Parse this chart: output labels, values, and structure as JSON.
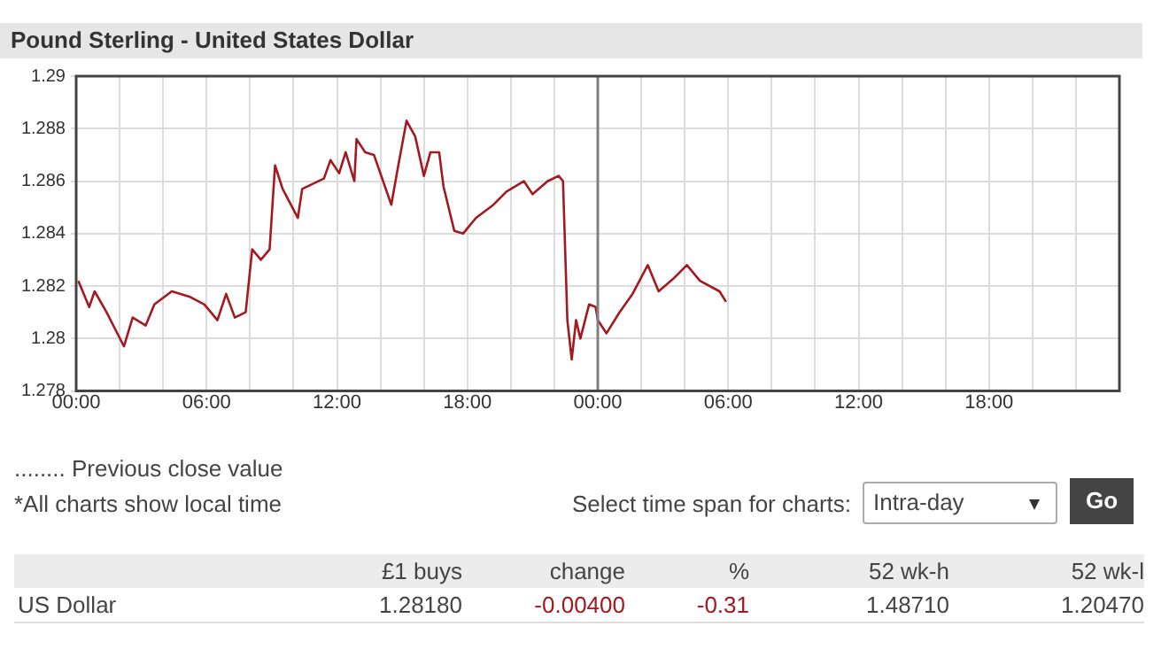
{
  "chart_data": {
    "type": "line",
    "title": "Pound Sterling - United States Dollar",
    "x": [
      "--05-08T00:06",
      "--05-08T00:36",
      "--05-08T00:51",
      "--05-08T01:24",
      "--05-08T02:12",
      "--05-08T02:36",
      "--05-08T03:12",
      "--05-08T03:36",
      "--05-08T04:24",
      "--05-08T05:12",
      "--05-08T05:54",
      "--05-08T06:30",
      "--05-08T06:54",
      "--05-08T07:18",
      "--05-08T07:48",
      "--05-08T08:06",
      "--05-08T08:30",
      "--05-08T08:54",
      "--05-08T09:09",
      "--05-08T09:30",
      "--05-08T10:12",
      "--05-08T10:24",
      "--05-08T11:24",
      "--05-08T11:42",
      "--05-08T12:06",
      "--05-08T12:24",
      "--05-08T12:48",
      "--05-08T12:54",
      "--05-08T13:18",
      "--05-08T13:42",
      "--05-08T14:30",
      "--05-08T14:48",
      "--05-08T15:12",
      "--05-08T15:36",
      "--05-08T16:00",
      "--05-08T16:18",
      "--05-08T16:42",
      "--05-08T16:54",
      "--05-08T17:24",
      "--05-08T17:48",
      "--05-08T18:24",
      "--05-08T19:12",
      "--05-08T19:48",
      "--05-08T20:36",
      "--05-08T21:00",
      "--05-08T21:42",
      "--05-08T22:12",
      "--05-08T22:24",
      "--05-08T22:36",
      "--05-08T22:48",
      "--05-08T23:00",
      "--05-08T23:12",
      "--05-08T23:36",
      "--05-08T23:54",
      "--05-09T00:00",
      "--05-09T00:24",
      "--05-09T01:00",
      "--05-09T01:36",
      "--05-09T02:18",
      "--05-09T02:48",
      "--05-09T03:30",
      "--05-09T04:06",
      "--05-09T04:42",
      "--05-09T05:36",
      "--05-09T05:54"
    ],
    "series": [
      {
        "color": "#a3191f",
        "values": [
          1.2822,
          1.2812,
          1.2818,
          1.281,
          1.2797,
          1.2808,
          1.2805,
          1.2813,
          1.2818,
          1.2816,
          1.2813,
          1.2807,
          1.2817,
          1.2808,
          1.281,
          1.2834,
          1.283,
          1.2834,
          1.2866,
          1.2857,
          1.2846,
          1.2857,
          1.2861,
          1.2868,
          1.2863,
          1.2871,
          1.286,
          1.2876,
          1.2871,
          1.287,
          1.2851,
          1.2865,
          1.2883,
          1.2877,
          1.2862,
          1.2871,
          1.2871,
          1.2858,
          1.2841,
          1.284,
          1.2846,
          1.2851,
          1.2856,
          1.286,
          1.2855,
          1.286,
          1.2862,
          1.286,
          1.2807,
          1.2792,
          1.2807,
          1.28,
          1.2813,
          1.2812,
          1.2807,
          1.2802,
          1.281,
          1.2817,
          1.2828,
          1.2818,
          1.2823,
          1.2828,
          1.2822,
          1.2818,
          1.2814
        ]
      }
    ],
    "xlim": [
      "--05-08T00:00",
      "--05-10T00:00"
    ],
    "xticks": [
      {
        "value": "--05-08T00:00",
        "label": "00:00"
      },
      {
        "value": "--05-08T02:00",
        "label": null
      },
      {
        "value": "--05-08T04:00",
        "label": null
      },
      {
        "value": "--05-08T06:00",
        "label": "06:00"
      },
      {
        "value": "--05-08T08:00",
        "label": null
      },
      {
        "value": "--05-08T10:00",
        "label": null
      },
      {
        "value": "--05-08T12:00",
        "label": "12:00"
      },
      {
        "value": "--05-08T14:00",
        "label": null
      },
      {
        "value": "--05-08T16:00",
        "label": null
      },
      {
        "value": "--05-08T18:00",
        "label": "18:00"
      },
      {
        "value": "--05-08T20:00",
        "label": null
      },
      {
        "value": "--05-08T22:00",
        "label": null
      },
      {
        "value": "--05-09T00:00",
        "label": "00:00"
      },
      {
        "value": "--05-09T02:00",
        "label": null
      },
      {
        "value": "--05-09T04:00",
        "label": null
      },
      {
        "value": "--05-09T06:00",
        "label": "06:00"
      },
      {
        "value": "--05-09T08:00",
        "label": null
      },
      {
        "value": "--05-09T10:00",
        "label": null
      },
      {
        "value": "--05-09T12:00",
        "label": "12:00"
      },
      {
        "value": "--05-09T14:00",
        "label": null
      },
      {
        "value": "--05-09T16:00",
        "label": null
      },
      {
        "value": "--05-09T18:00",
        "label": "18:00"
      },
      {
        "value": "--05-09T20:00",
        "label": null
      },
      {
        "value": "--05-09T22:00",
        "label": null
      },
      {
        "value": "--05-10T00:00",
        "label": null
      }
    ],
    "ylim": [
      1.278,
      1.29
    ],
    "yticks": [
      1.278,
      1.28,
      1.282,
      1.284,
      1.286,
      1.288,
      1.29
    ],
    "grid": true,
    "legend": false,
    "marker": "none",
    "line_style": "solid",
    "ref_lines": [
      {
        "axis": "x",
        "value": "--05-09T00:00",
        "color": "#808080",
        "line_style": "solid"
      }
    ],
    "annotations": [
      "........ Previous close value",
      "*All charts show local time",
      "Select time span for charts:",
      "Intra-day",
      "Go",
      "£1 buys",
      "change",
      "%",
      "52 wk-h",
      "52 wk-l",
      "US Dollar",
      "1.28180",
      "-0.00400",
      "-0.31",
      "1.48710",
      "1.20470"
    ]
  }
}
